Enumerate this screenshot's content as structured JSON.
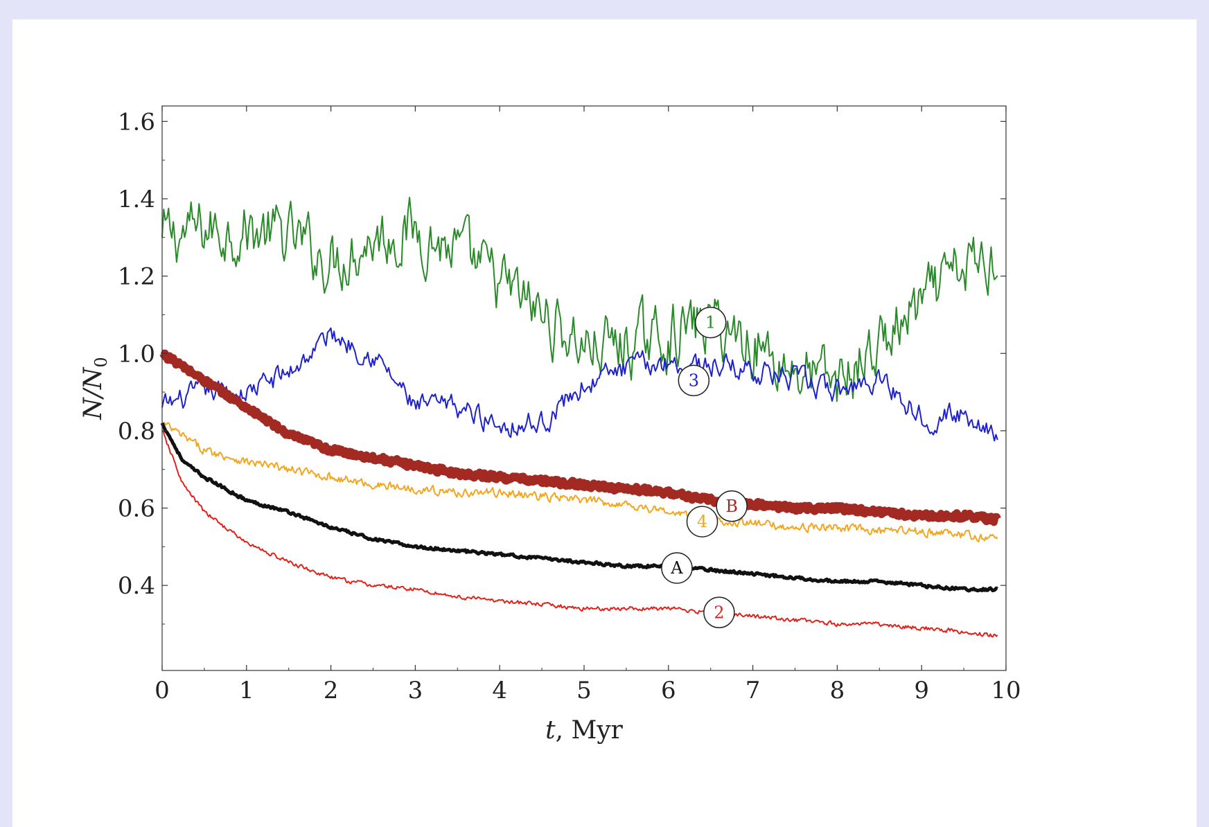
{
  "chart_data": {
    "type": "line",
    "xlabel": "t, Myr",
    "ylabel": "N/N",
    "ylabel_subscript": "0",
    "xlim": [
      0,
      10
    ],
    "ylim": [
      0.18,
      1.64
    ],
    "xticks": [
      "0",
      "1",
      "2",
      "3",
      "4",
      "5",
      "6",
      "7",
      "8",
      "9",
      "10"
    ],
    "yticks": [
      "0.4",
      "0.6",
      "0.8",
      "1.0",
      "1.2",
      "1.4",
      "1.6"
    ],
    "grid": false,
    "series": [
      {
        "name": "1",
        "color": "#2a8a2a",
        "x": [
          0,
          0.5,
          1,
          1.5,
          2,
          2.5,
          3,
          3.5,
          4,
          4.5,
          5,
          5.5,
          6,
          6.5,
          7,
          7.5,
          8,
          8.5,
          9,
          9.5,
          9.9
        ],
        "y": [
          1.3,
          1.32,
          1.32,
          1.3,
          1.24,
          1.3,
          1.32,
          1.26,
          1.18,
          1.1,
          1.02,
          1.02,
          1.05,
          1.08,
          1.03,
          0.96,
          0.92,
          1.02,
          1.12,
          1.22,
          1.25
        ]
      },
      {
        "name": "3",
        "color": "#1e22cc",
        "x": [
          0,
          0.5,
          1,
          1.5,
          2,
          2.5,
          3,
          3.5,
          4,
          4.5,
          5,
          5.5,
          6,
          6.5,
          7,
          7.5,
          8,
          8.5,
          9,
          9.5,
          9.9
        ],
        "y": [
          0.86,
          0.9,
          0.9,
          0.95,
          1.05,
          1.0,
          0.86,
          0.86,
          0.82,
          0.82,
          0.92,
          0.96,
          0.98,
          0.97,
          0.96,
          0.93,
          0.9,
          0.94,
          0.84,
          0.84,
          0.8
        ]
      },
      {
        "name": "B",
        "color": "#a32a22",
        "x": [
          0,
          0.5,
          1,
          1.5,
          2,
          2.5,
          3,
          3.5,
          4,
          4.5,
          5,
          5.5,
          6,
          6.5,
          7,
          7.5,
          8,
          8.5,
          9,
          9.5,
          9.9
        ],
        "y": [
          1.0,
          0.93,
          0.86,
          0.79,
          0.75,
          0.73,
          0.71,
          0.69,
          0.68,
          0.67,
          0.66,
          0.65,
          0.64,
          0.62,
          0.61,
          0.6,
          0.6,
          0.59,
          0.58,
          0.58,
          0.57
        ]
      },
      {
        "name": "4",
        "color": "#f2a51e",
        "x": [
          0,
          0.5,
          1,
          1.5,
          2,
          2.5,
          3,
          3.5,
          4,
          4.5,
          5,
          5.5,
          6,
          6.5,
          7,
          7.5,
          8,
          8.5,
          9,
          9.5,
          9.9
        ],
        "y": [
          0.82,
          0.75,
          0.72,
          0.7,
          0.68,
          0.66,
          0.65,
          0.64,
          0.64,
          0.63,
          0.62,
          0.61,
          0.59,
          0.57,
          0.56,
          0.55,
          0.55,
          0.54,
          0.54,
          0.53,
          0.52
        ]
      },
      {
        "name": "A",
        "color": "#111111",
        "x": [
          0,
          0.25,
          0.5,
          1,
          1.5,
          2,
          2.5,
          3,
          3.5,
          4,
          4.5,
          5,
          5.5,
          6,
          6.5,
          7,
          7.5,
          8,
          8.5,
          9,
          9.5,
          9.9
        ],
        "y": [
          0.82,
          0.72,
          0.68,
          0.62,
          0.59,
          0.55,
          0.52,
          0.5,
          0.49,
          0.48,
          0.47,
          0.46,
          0.45,
          0.45,
          0.44,
          0.43,
          0.42,
          0.41,
          0.41,
          0.4,
          0.39,
          0.39
        ]
      },
      {
        "name": "2",
        "color": "#e0221a",
        "x": [
          0,
          0.25,
          0.5,
          1,
          1.5,
          2,
          2.5,
          3,
          3.5,
          4,
          4.5,
          5,
          5.5,
          6,
          6.5,
          7,
          7.5,
          8,
          8.5,
          9,
          9.5,
          9.9
        ],
        "y": [
          0.8,
          0.66,
          0.59,
          0.51,
          0.46,
          0.42,
          0.4,
          0.39,
          0.37,
          0.36,
          0.35,
          0.34,
          0.34,
          0.34,
          0.33,
          0.32,
          0.31,
          0.3,
          0.3,
          0.29,
          0.28,
          0.27
        ]
      }
    ],
    "annotations": [
      {
        "text": "1",
        "x": 6.5,
        "y": 1.08,
        "color": "#2a8a2a"
      },
      {
        "text": "3",
        "x": 6.3,
        "y": 0.93,
        "color": "#1e22cc"
      },
      {
        "text": "B",
        "x": 6.75,
        "y": 0.605,
        "color": "#a32a22"
      },
      {
        "text": "4",
        "x": 6.4,
        "y": 0.565,
        "color": "#f2a51e"
      },
      {
        "text": "A",
        "x": 6.1,
        "y": 0.445,
        "color": "#111111"
      },
      {
        "text": "2",
        "x": 6.6,
        "y": 0.33,
        "color": "#e0221a"
      }
    ]
  }
}
